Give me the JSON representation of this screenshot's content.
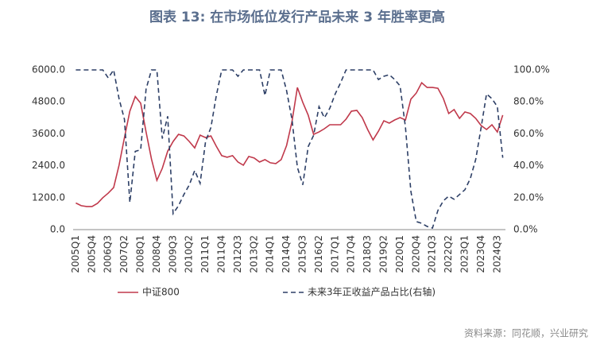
{
  "chart_data": {
    "type": "line",
    "title": "图表 13: 在市场低位发行产品未来 3 年胜率更高",
    "source": "资料来源：同花顺，兴业研究",
    "categories": [
      "2005Q1",
      null,
      null,
      "2005Q4",
      null,
      null,
      "2006Q3",
      null,
      null,
      "2007Q2",
      null,
      null,
      "2008Q1",
      null,
      null,
      "2008Q4",
      null,
      null,
      "2009Q3",
      null,
      null,
      "2010Q2",
      null,
      null,
      "2011Q1",
      null,
      null,
      "2011Q4",
      null,
      null,
      "2012Q3",
      null,
      null,
      "2013Q2",
      null,
      null,
      "2014Q1",
      null,
      null,
      "2014Q4",
      null,
      null,
      "2015Q3",
      null,
      null,
      "2016Q2",
      null,
      null,
      "2017Q1",
      null,
      null,
      "2017Q4",
      null,
      null,
      "2018Q3",
      null,
      null,
      "2019Q2",
      null,
      null,
      "2020Q1",
      null,
      null,
      "2020Q4",
      null,
      null,
      "2021Q3",
      null,
      null,
      "2022Q2",
      null,
      null,
      "2023Q1",
      null,
      null,
      "2023Q4",
      null,
      null,
      "2024Q3",
      null
    ],
    "series": [
      {
        "name": "中证800",
        "color": "#c0394b",
        "dash": false,
        "axis": "y",
        "values": [
          1000,
          900,
          870,
          870,
          985,
          1200,
          1370,
          1580,
          2420,
          3460,
          4450,
          5000,
          4750,
          3670,
          2650,
          1850,
          2300,
          2950,
          3310,
          3580,
          3520,
          3310,
          3070,
          3550,
          3460,
          3520,
          3130,
          2780,
          2720,
          2780,
          2540,
          2420,
          2750,
          2690,
          2540,
          2630,
          2510,
          2480,
          2630,
          3160,
          4060,
          5340,
          4780,
          4300,
          3580,
          3670,
          3790,
          3940,
          3940,
          3940,
          4150,
          4450,
          4480,
          4210,
          3760,
          3370,
          3700,
          4090,
          4000,
          4120,
          4210,
          4120,
          4900,
          5130,
          5520,
          5340,
          5340,
          5310,
          4930,
          4360,
          4510,
          4180,
          4420,
          4360,
          4180,
          3910,
          3760,
          3940,
          3670,
          4300
        ]
      },
      {
        "name": "未来3年正收益产品占比(右轴)",
        "color": "#2d3f66",
        "dash": true,
        "axis": "y2",
        "values": [
          100,
          100,
          100,
          100,
          100,
          100,
          95,
          100,
          82,
          69,
          17,
          49,
          50,
          88,
          100,
          100,
          57,
          71,
          10,
          15,
          22,
          28,
          37,
          29,
          55,
          64,
          84,
          100,
          100,
          100,
          96,
          100,
          100,
          100,
          100,
          84,
          100,
          100,
          100,
          87,
          69,
          39,
          28,
          52,
          59,
          77,
          70,
          76,
          85,
          92,
          100,
          100,
          100,
          100,
          100,
          100,
          94,
          96,
          97,
          94,
          90,
          64,
          24,
          5,
          4,
          2,
          1,
          12,
          18,
          21,
          19,
          22,
          25,
          32,
          44,
          64,
          85,
          82,
          77,
          45
        ]
      }
    ],
    "ylim": [
      0,
      6000
    ],
    "yticks": [
      {
        "value": 0,
        "label": "0.0"
      },
      {
        "value": 1200,
        "label": "1200.0"
      },
      {
        "value": 2400,
        "label": "2400.0"
      },
      {
        "value": 3600,
        "label": "3600.0"
      },
      {
        "value": 4800,
        "label": "4800.0"
      },
      {
        "value": 6000,
        "label": "6000.0"
      }
    ],
    "y2lim": [
      0,
      100
    ],
    "y2ticks": [
      {
        "value": 0,
        "label": "0.0%"
      },
      {
        "value": 20,
        "label": "20.0%"
      },
      {
        "value": 40,
        "label": "40.0%"
      },
      {
        "value": 60,
        "label": "60.0%"
      },
      {
        "value": 80,
        "label": "80.0%"
      },
      {
        "value": 100,
        "label": "100.0%"
      }
    ],
    "legend": "bottom"
  }
}
